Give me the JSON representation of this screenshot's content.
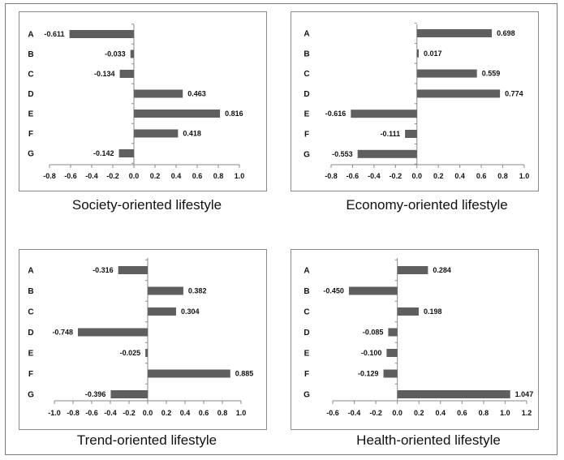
{
  "chart_data": [
    {
      "type": "bar",
      "orientation": "horizontal",
      "title": "Society-oriented lifestyle",
      "categories": [
        "A",
        "B",
        "C",
        "D",
        "E",
        "F",
        "G"
      ],
      "values": [
        -0.611,
        -0.033,
        -0.134,
        0.463,
        0.816,
        0.418,
        -0.142
      ],
      "value_labels": [
        "-0.611",
        "-0.033",
        "-0.134",
        "0.463",
        "0.816",
        "0.418",
        "-0.142"
      ],
      "xlim": [
        -0.8,
        1.0
      ],
      "ticks": [
        -0.8,
        -0.6,
        -0.4,
        -0.2,
        0.0,
        0.2,
        0.4,
        0.6,
        0.8,
        1.0
      ],
      "tick_labels": [
        "-0.8",
        "-0.6",
        "-0.4",
        "-0.2",
        "0.0",
        "0.2",
        "0.4",
        "0.6",
        "0.8",
        "1.0"
      ],
      "bar_color": "#5f5f5f"
    },
    {
      "type": "bar",
      "orientation": "horizontal",
      "title": "Economy-oriented lifestyle",
      "categories": [
        "A",
        "B",
        "C",
        "D",
        "E",
        "F",
        "G"
      ],
      "values": [
        0.698,
        0.017,
        0.559,
        0.774,
        -0.616,
        -0.111,
        -0.553
      ],
      "value_labels": [
        "0.698",
        "0.017",
        "0.559",
        "0.774",
        "-0.616",
        "-0.111",
        "-0.553"
      ],
      "xlim": [
        -0.8,
        1.0
      ],
      "ticks": [
        -0.8,
        -0.6,
        -0.4,
        -0.2,
        0.0,
        0.2,
        0.4,
        0.6,
        0.8,
        1.0
      ],
      "tick_labels": [
        "-0.8",
        "-0.6",
        "-0.4",
        "-0.2",
        "0.0",
        "0.2",
        "0.4",
        "0.6",
        "0.8",
        "1.0"
      ],
      "bar_color": "#5f5f5f"
    },
    {
      "type": "bar",
      "orientation": "horizontal",
      "title": "Trend-oriented lifestyle",
      "categories": [
        "A",
        "B",
        "C",
        "D",
        "E",
        "F",
        "G"
      ],
      "values": [
        -0.316,
        0.382,
        0.304,
        -0.748,
        -0.025,
        0.885,
        -0.396
      ],
      "value_labels": [
        "-0.316",
        "0.382",
        "0.304",
        "-0.748",
        "-0.025",
        "0.885",
        "-0.396"
      ],
      "xlim": [
        -1.0,
        1.0
      ],
      "ticks": [
        -1.0,
        -0.8,
        -0.6,
        -0.4,
        -0.2,
        0.0,
        0.2,
        0.4,
        0.6,
        0.8,
        1.0
      ],
      "tick_labels": [
        "-1.0",
        "-0.8",
        "-0.6",
        "-0.4",
        "-0.2",
        "0.0",
        "0.2",
        "0.4",
        "0.6",
        "0.8",
        "1.0"
      ],
      "bar_color": "#5f5f5f"
    },
    {
      "type": "bar",
      "orientation": "horizontal",
      "title": "Health-oriented lifestyle",
      "categories": [
        "A",
        "B",
        "C",
        "D",
        "E",
        "F",
        "G"
      ],
      "values": [
        0.284,
        -0.45,
        0.198,
        -0.085,
        -0.1,
        -0.129,
        1.047
      ],
      "value_labels": [
        "0.284",
        "-0.450",
        "0.198",
        "-0.085",
        "-0.100",
        "-0.129",
        "1.047"
      ],
      "xlim": [
        -0.6,
        1.2
      ],
      "ticks": [
        -0.6,
        -0.4,
        -0.2,
        0.0,
        0.2,
        0.4,
        0.6,
        0.8,
        1.0,
        1.2
      ],
      "tick_labels": [
        "-0.6",
        "-0.4",
        "-0.2",
        "0.0",
        "0.2",
        "0.4",
        "0.6",
        "0.8",
        "1.0",
        "1.2"
      ],
      "bar_color": "#5f5f5f"
    }
  ]
}
